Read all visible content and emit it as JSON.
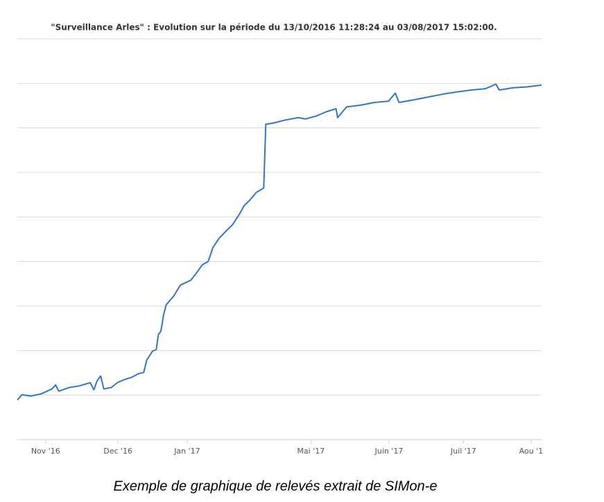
{
  "chart_data": {
    "type": "line",
    "title": "\"Surveillance Arles\" : Evolution sur la période du 13/10/2016 11:28:24 au 03/08/2017 15:02:00.",
    "caption": "Exemple de graphique de relevés extrait de SIMon-e",
    "xlim": [
      0,
      100
    ],
    "xticks": [
      {
        "value": 5.4,
        "label": "Nov '16"
      },
      {
        "value": 19.2,
        "label": "Dec '16"
      },
      {
        "value": 32.4,
        "label": "Jan '17"
      },
      {
        "value": 56.0,
        "label": "Mai '17"
      },
      {
        "value": 70.9,
        "label": "Juin '17"
      },
      {
        "value": 85.1,
        "label": "Juil '17"
      },
      {
        "value": 98.0,
        "label": "Aou '1"
      }
    ],
    "ylim": [
      0,
      9
    ],
    "ygrid": [
      1,
      2,
      3,
      4,
      5,
      6,
      7,
      8,
      9
    ],
    "grid": true,
    "color": "#2f74d0",
    "x": [
      0,
      0.9,
      2.6,
      4.6,
      6.6,
      7.3,
      7.9,
      9.9,
      11.9,
      13.9,
      14.6,
      15.2,
      15.9,
      16.5,
      17.9,
      19.2,
      20.5,
      21.8,
      23.1,
      24.1,
      24.7,
      25.8,
      26.5,
      26.9,
      27.4,
      27.9,
      28.4,
      29.8,
      31.1,
      33.1,
      34.4,
      35.3,
      36.4,
      37.3,
      38.4,
      39.7,
      41.0,
      42.3,
      43.3,
      44.3,
      45.6,
      47.0,
      47.4,
      48.9,
      50.9,
      53.6,
      54.9,
      56.9,
      58.9,
      60.8,
      61.1,
      62.8,
      65.5,
      68.1,
      70.8,
      72.1,
      72.8,
      76.1,
      78.7,
      81.3,
      84.0,
      86.6,
      89.3,
      91.3,
      91.9,
      94.6,
      97.2,
      100
    ],
    "values": [
      0.89,
      1.01,
      0.98,
      1.03,
      1.14,
      1.23,
      1.09,
      1.17,
      1.21,
      1.28,
      1.12,
      1.32,
      1.43,
      1.14,
      1.17,
      1.29,
      1.35,
      1.4,
      1.48,
      1.51,
      1.79,
      1.99,
      2.02,
      2.36,
      2.44,
      2.8,
      3.03,
      3.22,
      3.47,
      3.58,
      3.78,
      3.93,
      4.0,
      4.31,
      4.51,
      4.67,
      4.82,
      5.05,
      5.26,
      5.37,
      5.55,
      5.65,
      7.08,
      7.11,
      7.17,
      7.23,
      7.2,
      7.26,
      7.36,
      7.43,
      7.23,
      7.47,
      7.51,
      7.57,
      7.6,
      7.78,
      7.57,
      7.64,
      7.7,
      7.76,
      7.81,
      7.85,
      7.88,
      7.98,
      7.85,
      7.9,
      7.92,
      7.96
    ]
  }
}
